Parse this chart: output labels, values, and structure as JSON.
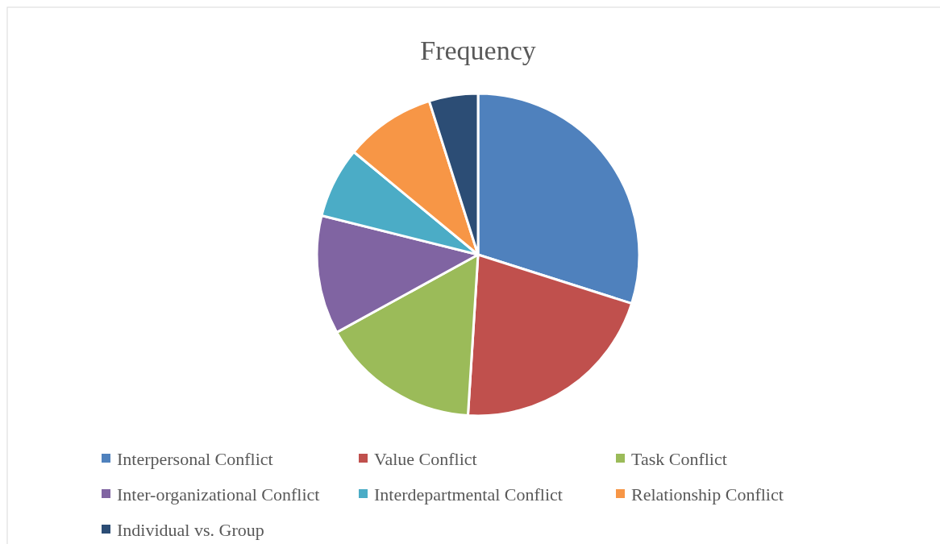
{
  "chart_data": {
    "type": "pie",
    "title": "Frequency",
    "categories": [
      "Interpersonal Conflict",
      "Value Conflict",
      "Task Conflict",
      "Inter-organizational Conflict",
      "Interdepartmental Conflict",
      "Relationship Conflict",
      "Individual vs. Group"
    ],
    "values": [
      29.9,
      21.1,
      16.0,
      11.9,
      7.1,
      9.1,
      4.9
    ],
    "colors": [
      "#4f81bd",
      "#c0504d",
      "#9bbb59",
      "#8064a2",
      "#4bacc6",
      "#f79646",
      "#2c4d75"
    ],
    "legend": "bottom"
  }
}
